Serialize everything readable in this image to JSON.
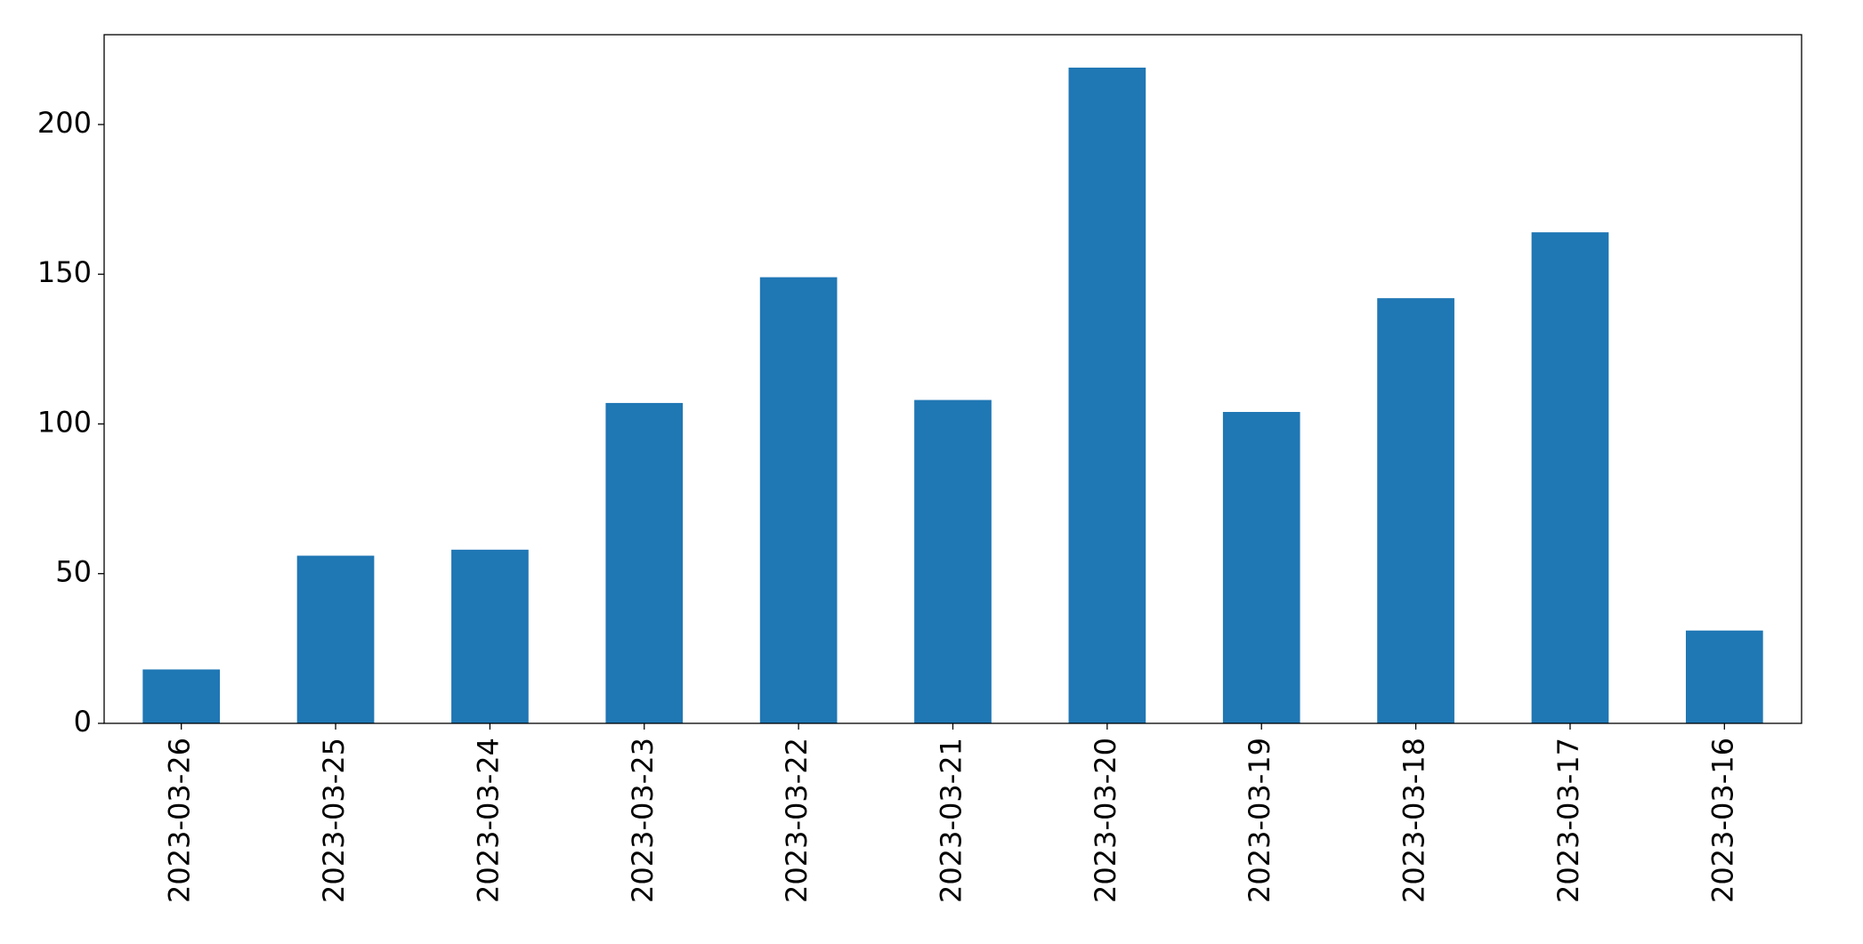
{
  "chart_data": {
    "type": "bar",
    "categories": [
      "2023-03-26",
      "2023-03-25",
      "2023-03-24",
      "2023-03-23",
      "2023-03-22",
      "2023-03-21",
      "2023-03-20",
      "2023-03-19",
      "2023-03-18",
      "2023-03-17",
      "2023-03-16"
    ],
    "values": [
      18,
      56,
      58,
      107,
      149,
      108,
      219,
      104,
      142,
      164,
      31
    ],
    "color": "#1f77b4",
    "ylim": [
      0,
      230
    ],
    "yticks": [
      0,
      50,
      100,
      150,
      200
    ],
    "grid": false
  }
}
